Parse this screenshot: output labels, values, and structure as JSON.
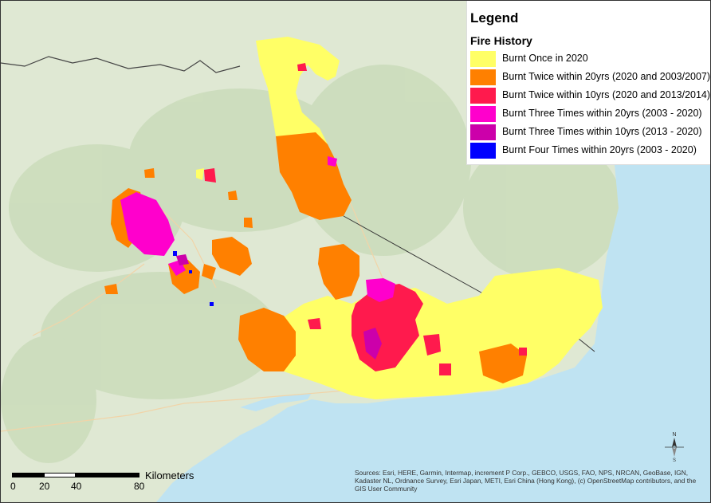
{
  "legend": {
    "title": "Legend",
    "subtitle": "Fire History",
    "items": [
      {
        "label": "Burnt Once in 2020",
        "color": "#ffff66"
      },
      {
        "label": "Burnt Twice within 20yrs (2020 and 2003/2007)",
        "color": "#ff8000"
      },
      {
        "label": "Burnt Twice within 10yrs (2020 and 2013/2014)",
        "color": "#ff1a4d"
      },
      {
        "label": "Burnt Three Times within 20yrs (2003 - 2020)",
        "color": "#ff00cc"
      },
      {
        "label": "Burnt Three Times within 10yrs (2013 - 2020)",
        "color": "#cc00aa"
      },
      {
        "label": "Burnt Four Times within 20yrs (2003 - 2020)",
        "color": "#0000ff"
      }
    ]
  },
  "scale_bar": {
    "unit": "Kilometers",
    "ticks": [
      "0",
      "20",
      "40",
      "80"
    ]
  },
  "credits": "Sources: Esri, HERE, Garmin, Intermap, increment P Corp., GEBCO, USGS, FAO, NPS, NRCAN, GeoBase, IGN, Kadaster NL, Ordnance Survey, Esri Japan, METI, Esri China (Hong Kong), (c) OpenStreetMap contributors, and the GIS User Community",
  "colors": {
    "ocean": "#bfe3f2",
    "land": "#dfe8d3",
    "terrain": "#c8d9b9"
  },
  "icons": [
    "north-arrow-icon"
  ]
}
